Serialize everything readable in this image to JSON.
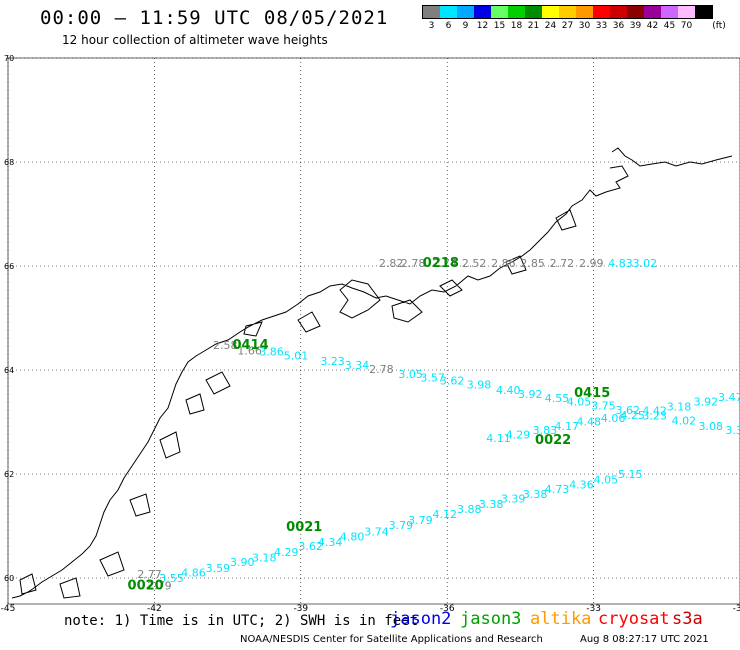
{
  "header": {
    "title": "00:00 – 11:59 UTC 08/05/2021",
    "subtitle": "12 hour collection of altimeter wave heights"
  },
  "legend": {
    "unit": "(ft)",
    "bins": [
      {
        "label": "3",
        "color": "#7f7f7f"
      },
      {
        "label": "6",
        "color": "#00e5ff"
      },
      {
        "label": "9",
        "color": "#00a8ff"
      },
      {
        "label": "12",
        "color": "#0000e6"
      },
      {
        "label": "15",
        "color": "#66ff66"
      },
      {
        "label": "18",
        "color": "#00d000"
      },
      {
        "label": "21",
        "color": "#008c00"
      },
      {
        "label": "24",
        "color": "#ffff00"
      },
      {
        "label": "27",
        "color": "#ffcc00"
      },
      {
        "label": "30",
        "color": "#ff9900"
      },
      {
        "label": "33",
        "color": "#ff0000"
      },
      {
        "label": "36",
        "color": "#cc0000"
      },
      {
        "label": "39",
        "color": "#8c0000"
      },
      {
        "label": "42",
        "color": "#990099"
      },
      {
        "label": "45",
        "color": "#cc66ff"
      },
      {
        "label": "70",
        "color": "#ffbbff"
      },
      {
        "label": "",
        "color": "#000000"
      }
    ]
  },
  "map": {
    "lon_range": [
      -45,
      -30
    ],
    "lat_range": [
      59.5,
      70
    ],
    "lon_ticks": [
      "-45",
      "-42",
      "-39",
      "-36",
      "-33",
      "-30"
    ],
    "lat_ticks": [
      "70",
      "68",
      "66",
      "64",
      "62",
      "60"
    ],
    "colors": {
      "grey": "#7f7f7f",
      "cyan": "#00e5ff",
      "time": "#008c00"
    },
    "tracks": [
      {
        "time": "0218",
        "time_lonlat": [
          -36.5,
          65.98
        ],
        "points": [
          {
            "lon": -37.4,
            "lat": 65.98,
            "v": "2.82",
            "c": "grey"
          },
          {
            "lon": -36.95,
            "lat": 65.98,
            "v": "2.78",
            "c": "grey"
          },
          {
            "lon": -36.3,
            "lat": 65.98,
            "v": "2.74",
            "c": "grey"
          },
          {
            "lon": -35.7,
            "lat": 65.98,
            "v": "2.52",
            "c": "grey"
          },
          {
            "lon": -35.1,
            "lat": 65.98,
            "v": "2.86",
            "c": "grey"
          },
          {
            "lon": -34.5,
            "lat": 65.98,
            "v": "2.85",
            "c": "grey"
          },
          {
            "lon": -33.9,
            "lat": 65.98,
            "v": "2.72",
            "c": "grey"
          },
          {
            "lon": -33.3,
            "lat": 65.98,
            "v": "2.99",
            "c": "grey"
          },
          {
            "lon": -32.7,
            "lat": 65.98,
            "v": "4.83",
            "c": "cyan"
          },
          {
            "lon": -32.2,
            "lat": 65.98,
            "v": "3.02",
            "c": "cyan"
          }
        ]
      },
      {
        "time": "0414",
        "time_lonlat": [
          -40.4,
          64.4
        ],
        "points": [
          {
            "lon": -40.8,
            "lat": 64.4,
            "v": "2.58",
            "c": "grey"
          },
          {
            "lon": -40.3,
            "lat": 64.3,
            "v": "1.66",
            "c": "grey"
          },
          {
            "lon": -39.85,
            "lat": 64.28,
            "v": "3.86",
            "c": "cyan"
          },
          {
            "lon": -39.35,
            "lat": 64.2,
            "v": "5.01",
            "c": "cyan"
          },
          {
            "lon": -38.6,
            "lat": 64.1,
            "v": "3.23",
            "c": "cyan"
          },
          {
            "lon": -38.1,
            "lat": 64.02,
            "v": "3.34",
            "c": "cyan"
          },
          {
            "lon": -37.6,
            "lat": 63.94,
            "v": "2.78",
            "c": "grey"
          },
          {
            "lon": -37.0,
            "lat": 63.85,
            "v": "3.05",
            "c": "cyan"
          },
          {
            "lon": -36.55,
            "lat": 63.78,
            "v": "3.57",
            "c": "cyan"
          },
          {
            "lon": -36.15,
            "lat": 63.72,
            "v": "3.62",
            "c": "cyan"
          },
          {
            "lon": -35.6,
            "lat": 63.64,
            "v": "3.98",
            "c": "cyan"
          },
          {
            "lon": -35.0,
            "lat": 63.54,
            "v": "4.40",
            "c": "cyan"
          },
          {
            "lon": -34.55,
            "lat": 63.46,
            "v": "3.92",
            "c": "cyan"
          },
          {
            "lon": -34.0,
            "lat": 63.38,
            "v": "4.55",
            "c": "cyan"
          },
          {
            "lon": -33.55,
            "lat": 63.32,
            "v": "4.05",
            "c": "cyan"
          },
          {
            "lon": -33.05,
            "lat": 63.24,
            "v": "3.75",
            "c": "cyan"
          },
          {
            "lon": -32.55,
            "lat": 63.15,
            "v": "3.62",
            "c": "cyan"
          },
          {
            "lon": -32.0,
            "lat": 63.05,
            "v": "3.23",
            "c": "cyan"
          },
          {
            "lon": -31.4,
            "lat": 62.95,
            "v": "4.02",
            "c": "cyan"
          },
          {
            "lon": -30.85,
            "lat": 62.85,
            "v": "3.08",
            "c": "cyan"
          },
          {
            "lon": -30.3,
            "lat": 62.77,
            "v": "3.38",
            "c": "cyan"
          }
        ]
      },
      {
        "time": "0415",
        "time_lonlat": [
          -33.4,
          63.48
        ],
        "points": []
      },
      {
        "time": "0022",
        "time_lonlat": [
          -34.2,
          62.58
        ],
        "points": [
          {
            "lon": -35.2,
            "lat": 62.62,
            "v": "4.11",
            "c": "cyan"
          },
          {
            "lon": -34.8,
            "lat": 62.68,
            "v": "4.29",
            "c": "cyan"
          },
          {
            "lon": -34.25,
            "lat": 62.77,
            "v": "3.83",
            "c": "cyan"
          },
          {
            "lon": -33.8,
            "lat": 62.85,
            "v": "4.17",
            "c": "cyan"
          },
          {
            "lon": -33.35,
            "lat": 62.93,
            "v": "4.48",
            "c": "cyan"
          },
          {
            "lon": -32.85,
            "lat": 63.0,
            "v": "4.06",
            "c": "cyan"
          },
          {
            "lon": -32.45,
            "lat": 63.06,
            "v": "4.25",
            "c": "cyan"
          },
          {
            "lon": -32.0,
            "lat": 63.14,
            "v": "4.42",
            "c": "cyan"
          },
          {
            "lon": -31.5,
            "lat": 63.22,
            "v": "3.18",
            "c": "cyan"
          },
          {
            "lon": -30.95,
            "lat": 63.32,
            "v": "3.92",
            "c": "cyan"
          },
          {
            "lon": -30.45,
            "lat": 63.4,
            "v": "3.47",
            "c": "cyan"
          }
        ]
      },
      {
        "time": "0021",
        "time_lonlat": [
          -39.3,
          60.9
        ],
        "points": [
          {
            "lon": -42.15,
            "lat": 59.78,
            "v": "2.79",
            "c": "grey"
          },
          {
            "lon": -41.9,
            "lat": 59.92,
            "v": "3.55",
            "c": "cyan"
          },
          {
            "lon": -41.45,
            "lat": 60.03,
            "v": "4.86",
            "c": "cyan"
          },
          {
            "lon": -40.95,
            "lat": 60.12,
            "v": "3.59",
            "c": "cyan"
          },
          {
            "lon": -40.45,
            "lat": 60.23,
            "v": "3.90",
            "c": "cyan"
          },
          {
            "lon": -40.0,
            "lat": 60.32,
            "v": "3.18",
            "c": "cyan"
          },
          {
            "lon": -39.55,
            "lat": 60.42,
            "v": "4.29",
            "c": "cyan"
          },
          {
            "lon": -39.05,
            "lat": 60.54,
            "v": "3.62",
            "c": "cyan"
          },
          {
            "lon": -38.65,
            "lat": 60.62,
            "v": "4.34",
            "c": "cyan"
          },
          {
            "lon": -38.2,
            "lat": 60.72,
            "v": "4.80",
            "c": "cyan"
          },
          {
            "lon": -37.7,
            "lat": 60.82,
            "v": "3.74",
            "c": "cyan"
          },
          {
            "lon": -37.2,
            "lat": 60.94,
            "v": "3.79",
            "c": "cyan"
          },
          {
            "lon": -36.8,
            "lat": 61.04,
            "v": "3.79",
            "c": "cyan"
          },
          {
            "lon": -36.3,
            "lat": 61.15,
            "v": "4.12",
            "c": "cyan"
          },
          {
            "lon": -35.8,
            "lat": 61.25,
            "v": "3.88",
            "c": "cyan"
          },
          {
            "lon": -35.35,
            "lat": 61.35,
            "v": "3.38",
            "c": "cyan"
          },
          {
            "lon": -34.9,
            "lat": 61.45,
            "v": "3.39",
            "c": "cyan"
          },
          {
            "lon": -34.45,
            "lat": 61.54,
            "v": "3.38",
            "c": "cyan"
          },
          {
            "lon": -34.0,
            "lat": 61.63,
            "v": "4.73",
            "c": "cyan"
          },
          {
            "lon": -33.5,
            "lat": 61.72,
            "v": "4.36",
            "c": "cyan"
          },
          {
            "lon": -33.0,
            "lat": 61.82,
            "v": "4.05",
            "c": "cyan"
          },
          {
            "lon": -32.5,
            "lat": 61.92,
            "v": "5.15",
            "c": "cyan"
          }
        ]
      },
      {
        "time": "0020",
        "time_lonlat": [
          -42.55,
          59.78
        ],
        "points": [
          {
            "lon": -42.35,
            "lat": 60.0,
            "v": "2.77",
            "c": "grey"
          }
        ]
      }
    ]
  },
  "note": "note: 1) Time is in UTC; 2) SWH is in feet",
  "satellites": [
    {
      "name": "jason2",
      "color": "#0000e6"
    },
    {
      "name": "jason3",
      "color": "#00a000"
    },
    {
      "name": "altika",
      "color": "#ff9900"
    },
    {
      "name": "cryosat",
      "color": "#ff0000"
    },
    {
      "name": "s3a",
      "color": "#cc0000"
    }
  ],
  "footer": {
    "credit": "NOAA/NESDIS Center for Satellite Applications and Research",
    "timestamp": "Aug  8 08:27:17 UTC 2021"
  }
}
